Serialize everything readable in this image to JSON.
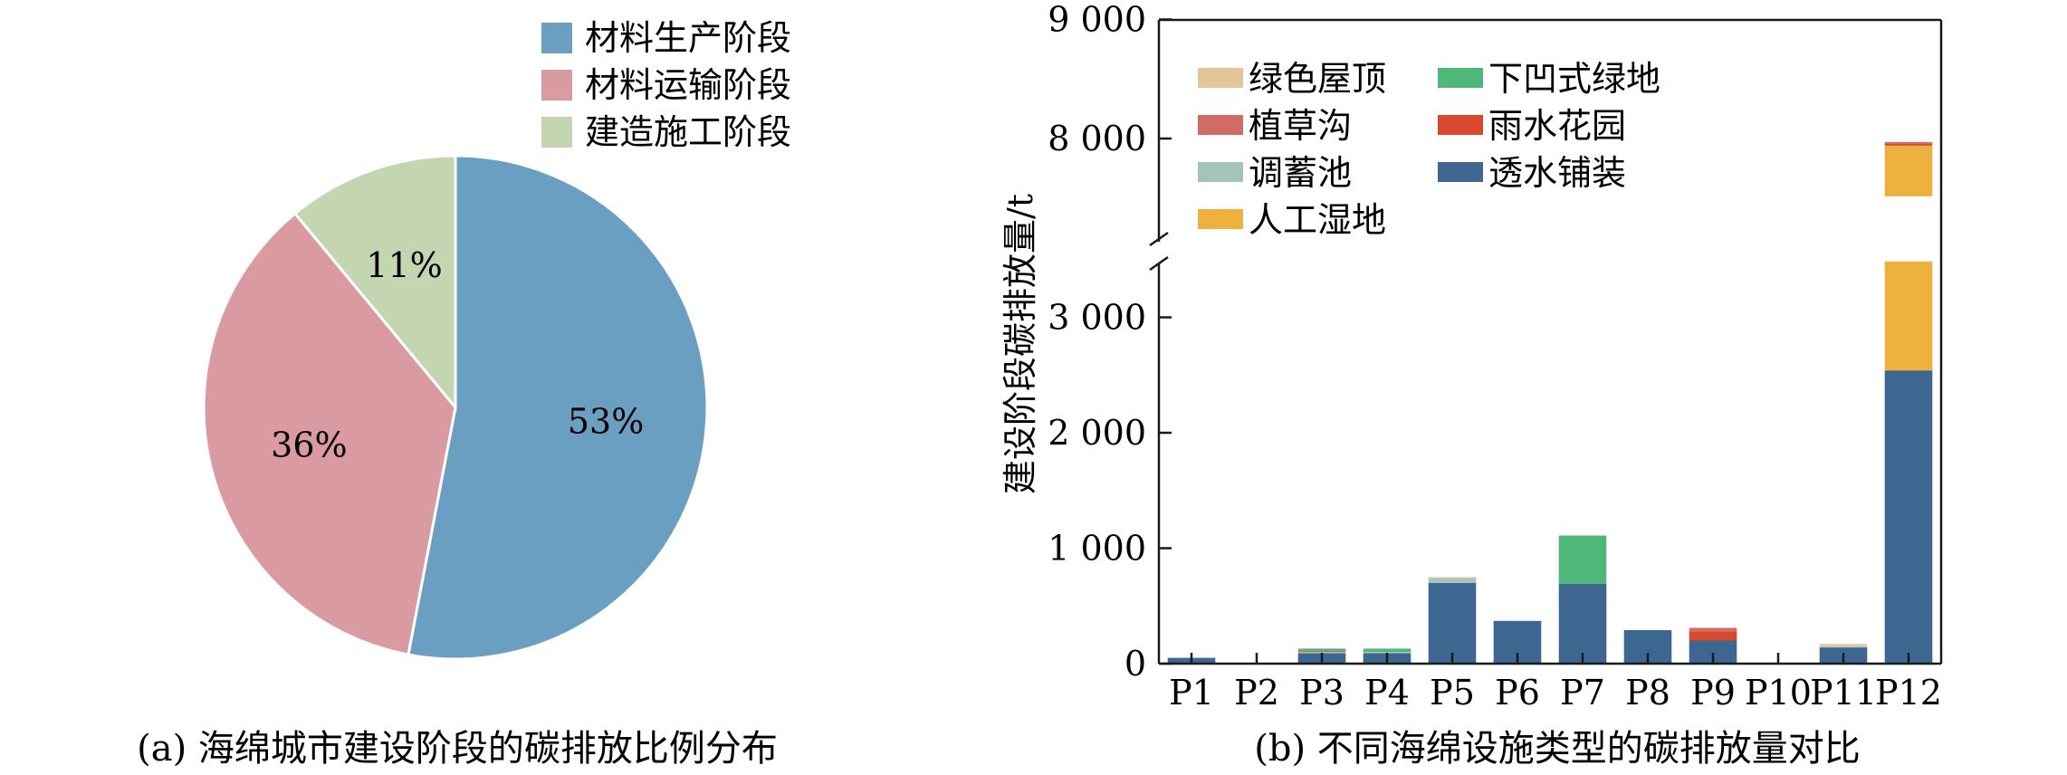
{
  "chart_data": [
    {
      "type": "pie",
      "caption": "(a) 海绵城市建设阶段的碳排放比例分布",
      "series": [
        {
          "name": "材料生产阶段",
          "value": 53,
          "label": "53%",
          "color": "#6a9fc1"
        },
        {
          "name": "材料运输阶段",
          "value": 36,
          "label": "36%",
          "color": "#d99ba1"
        },
        {
          "name": "建造施工阶段",
          "value": 11,
          "label": "11%",
          "color": "#c4d5b2"
        }
      ],
      "legend_position": "top-right"
    },
    {
      "type": "bar",
      "stacked": true,
      "caption": "(b) 不同海绵设施类型的碳排放量对比",
      "ylabel": "建设阶段碳排放量/t",
      "categories": [
        "P1",
        "P2",
        "P3",
        "P4",
        "P5",
        "P6",
        "P7",
        "P8",
        "P9",
        "P10",
        "P11",
        "P12"
      ],
      "axis_break": [
        3500,
        7500
      ],
      "ylim": [
        0,
        9000
      ],
      "yticks": [
        {
          "value": 0,
          "label": "0"
        },
        {
          "value": 1000,
          "label": "1 000"
        },
        {
          "value": 2000,
          "label": "2 000"
        },
        {
          "value": 3000,
          "label": "3 000"
        },
        {
          "value": 8000,
          "label": "8 000"
        },
        {
          "value": 9000,
          "label": "9 000"
        }
      ],
      "series": [
        {
          "name": "透水铺装",
          "color": "#3d6690",
          "values": [
            50,
            0,
            90,
            90,
            700,
            370,
            690,
            290,
            200,
            0,
            140,
            2540
          ]
        },
        {
          "name": "人工湿地",
          "color": "#eeb13e",
          "values": [
            0,
            0,
            0,
            0,
            0,
            0,
            0,
            0,
            0,
            0,
            0,
            5400
          ]
        },
        {
          "name": "调蓄池",
          "color": "#a3c4ba",
          "values": [
            0,
            0,
            10,
            10,
            40,
            0,
            0,
            0,
            0,
            0,
            10,
            0
          ]
        },
        {
          "name": "雨水花园",
          "color": "#d9472f",
          "values": [
            0,
            0,
            0,
            0,
            0,
            0,
            0,
            0,
            80,
            0,
            0,
            20
          ]
        },
        {
          "name": "植草沟",
          "color": "#d26a67",
          "values": [
            0,
            0,
            10,
            0,
            0,
            0,
            0,
            0,
            30,
            0,
            0,
            10
          ]
        },
        {
          "name": "下凹式绿地",
          "color": "#4db879",
          "values": [
            0,
            0,
            20,
            30,
            0,
            0,
            420,
            0,
            0,
            0,
            0,
            0
          ]
        },
        {
          "name": "绿色屋顶",
          "color": "#e3c599",
          "values": [
            0,
            0,
            0,
            0,
            10,
            0,
            0,
            0,
            0,
            0,
            20,
            0
          ]
        }
      ],
      "legend_order": [
        "绿色屋顶",
        "下凹式绿地",
        "植草沟",
        "雨水花园",
        "调蓄池",
        "透水铺装",
        "人工湿地"
      ],
      "legend_position": "top-left"
    }
  ]
}
